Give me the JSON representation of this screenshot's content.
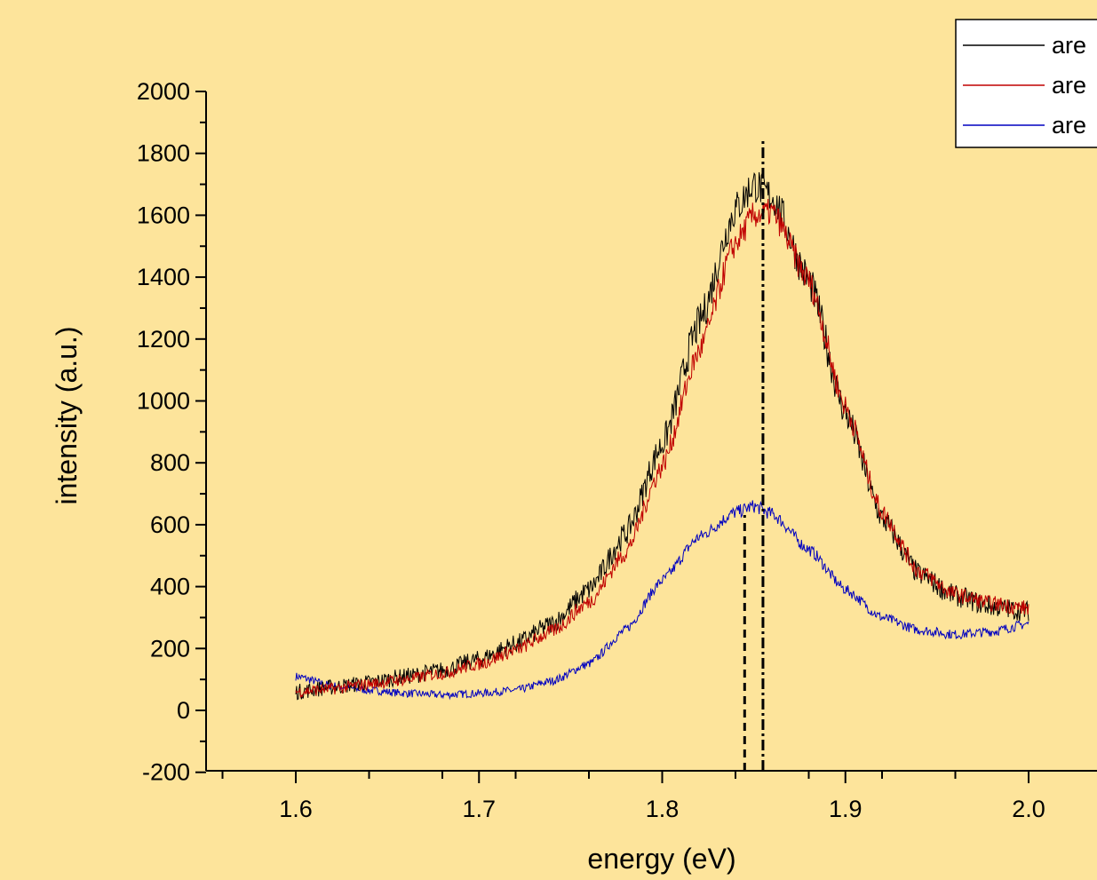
{
  "background": "#FDE49B",
  "chart_data": {
    "type": "line",
    "title": "",
    "xlabel": "energy (eV)",
    "ylabel": "intensity (a.u.)",
    "xlim": [
      1.555,
      2.2
    ],
    "ylim": [
      -200,
      2000
    ],
    "x_ticks": [
      "1.6",
      "1.7",
      "1.8",
      "1.9",
      "2.0"
    ],
    "y_ticks": [
      "-200",
      "0",
      "200",
      "400",
      "600",
      "800",
      "1000",
      "1200",
      "1400",
      "1600",
      "1800",
      "2000"
    ],
    "grid": false,
    "legend_position": "top-right",
    "x": [
      1.6,
      1.62,
      1.64,
      1.66,
      1.68,
      1.7,
      1.72,
      1.74,
      1.76,
      1.78,
      1.8,
      1.82,
      1.84,
      1.85,
      1.86,
      1.88,
      1.9,
      1.92,
      1.94,
      1.96,
      1.98,
      2.0
    ],
    "series": [
      {
        "name": "are",
        "color": "#000000",
        "values": [
          60,
          75,
          90,
          110,
          130,
          165,
          215,
          280,
          390,
          570,
          860,
          1250,
          1620,
          1700,
          1660,
          1390,
          960,
          620,
          440,
          370,
          335,
          320
        ],
        "noise": 60
      },
      {
        "name": "are",
        "color": "#C00000",
        "values": [
          60,
          70,
          85,
          100,
          120,
          150,
          195,
          255,
          350,
          510,
          790,
          1160,
          1510,
          1600,
          1610,
          1390,
          980,
          640,
          450,
          375,
          345,
          330
        ],
        "noise": 45
      },
      {
        "name": "are",
        "color": "#0000C0",
        "values": [
          110,
          80,
          65,
          55,
          50,
          55,
          65,
          95,
          150,
          260,
          420,
          560,
          640,
          660,
          635,
          520,
          390,
          300,
          260,
          245,
          255,
          280
        ],
        "noise": 30
      }
    ],
    "reference_lines": [
      {
        "x": 1.845,
        "style": "dashed",
        "color": "#000000"
      },
      {
        "x": 1.855,
        "style": "dash-dot",
        "color": "#000000"
      }
    ]
  }
}
